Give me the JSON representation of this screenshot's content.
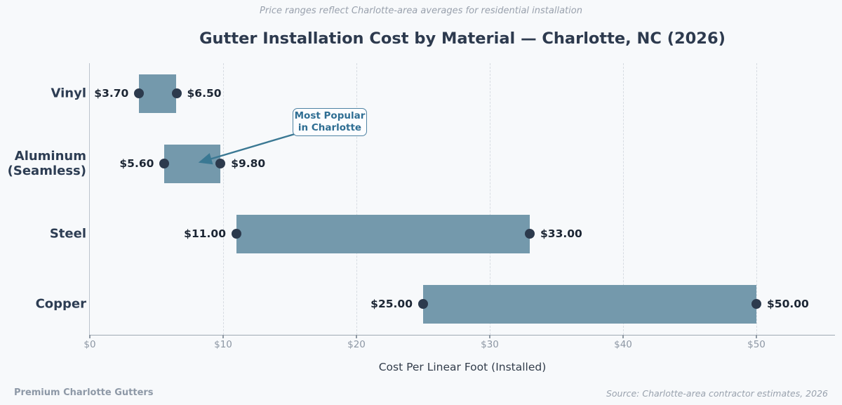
{
  "chart_data": {
    "type": "bar",
    "subtype": "horizontal-range-bar",
    "title": "Gutter Installation Cost by Material — Charlotte, NC (2026)",
    "subtitle": "Price ranges reflect Charlotte-area averages for residential installation",
    "xlabel": "Cost Per Linear Foot (Installed)",
    "x_axis": {
      "min": 0,
      "max": 55.9,
      "ticks": [
        0,
        10,
        20,
        30,
        40,
        50
      ],
      "tick_labels": [
        "$0",
        "$10",
        "$20",
        "$30",
        "$40",
        "$50"
      ],
      "gridlines": "dashed-vertical"
    },
    "rows": [
      {
        "category": "Vinyl",
        "label_lines": [
          "Vinyl"
        ],
        "low": 3.7,
        "high": 6.5,
        "low_label": "$3.70",
        "high_label": "$6.50"
      },
      {
        "category": "Aluminum (Seamless)",
        "label_lines": [
          "Aluminum",
          "(Seamless)"
        ],
        "low": 5.6,
        "high": 9.8,
        "low_label": "$5.60",
        "high_label": "$9.80"
      },
      {
        "category": "Steel",
        "label_lines": [
          "Steel"
        ],
        "low": 11.0,
        "high": 33.0,
        "low_label": "$11.00",
        "high_label": "$33.00"
      },
      {
        "category": "Copper",
        "label_lines": [
          "Copper"
        ],
        "low": 25.0,
        "high": 50.0,
        "low_label": "$25.00",
        "high_label": "$50.00"
      }
    ],
    "annotation": {
      "lines": [
        "Most Popular",
        "in Charlotte"
      ],
      "target_category": "Aluminum (Seamless)"
    },
    "colors": {
      "background": "#f7f9fb",
      "bar": "#7499ac",
      "dot": "#2c3a4d",
      "annotation_text": "#2f6e93",
      "annotation_border": "#4f83a3",
      "arrow": "#3a7893"
    }
  },
  "footer": {
    "left": "Premium Charlotte Gutters",
    "right": "Source: Charlotte-area contractor estimates, 2026"
  }
}
